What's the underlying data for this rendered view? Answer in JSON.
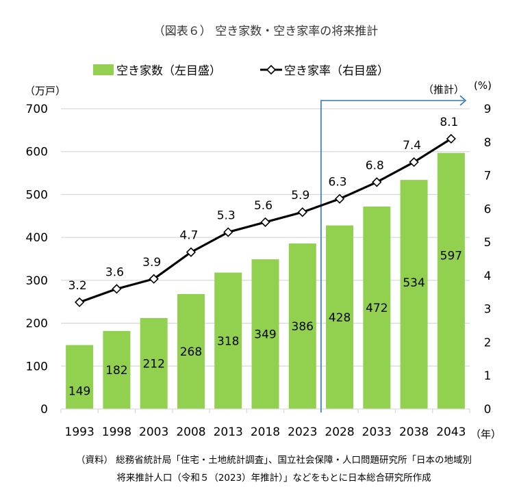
{
  "chart_data": {
    "type": "bar",
    "title": "（図表６） 空き家数・空き家率の将来推計",
    "categories": [
      "1993",
      "1998",
      "2003",
      "2008",
      "2013",
      "2018",
      "2023",
      "2028",
      "2033",
      "2038",
      "2043"
    ],
    "xlabel": "（年）",
    "series": [
      {
        "name": "空き家数（左目盛）",
        "type": "bar",
        "axis": "left",
        "color": "#92D050",
        "values": [
          149,
          182,
          212,
          268,
          318,
          349,
          386,
          428,
          472,
          534,
          597
        ],
        "labels": [
          "149",
          "182",
          "212",
          "268",
          "318",
          "349",
          "386",
          "428",
          "472",
          "534",
          "597"
        ]
      },
      {
        "name": "空き家率（右目盛）",
        "type": "line",
        "axis": "right",
        "color": "#000000",
        "marker": "diamond-open",
        "values": [
          3.2,
          3.6,
          3.9,
          4.7,
          5.3,
          5.6,
          5.9,
          6.3,
          6.8,
          7.4,
          8.1
        ],
        "labels": [
          "3.2",
          "3.6",
          "3.9",
          "4.7",
          "5.3",
          "5.6",
          "5.9",
          "6.3",
          "6.8",
          "7.4",
          "8.1"
        ]
      }
    ],
    "left_axis": {
      "label": "（万戸）",
      "ylim": [
        0,
        700
      ],
      "ticks": [
        "0",
        "100",
        "200",
        "300",
        "400",
        "500",
        "600",
        "700"
      ]
    },
    "right_axis": {
      "label": "(%)",
      "ylim": [
        0,
        9
      ],
      "ticks": [
        "0",
        "1",
        "2",
        "3",
        "4",
        "5",
        "6",
        "7",
        "8",
        "9"
      ]
    },
    "grid": true,
    "legend": "top-center",
    "annotation": {
      "text": "（推計）",
      "starts_after_category": "2023",
      "color": "#2E75B6"
    },
    "source_note": [
      "（資料） 総務省統計局「住宅・土地統計調査」、国立社会保障・人口問題研究所「日本の地域別",
      "将来推計人口（令和５（2023）年推計）」などをもとに日本総合研究所作成"
    ]
  }
}
